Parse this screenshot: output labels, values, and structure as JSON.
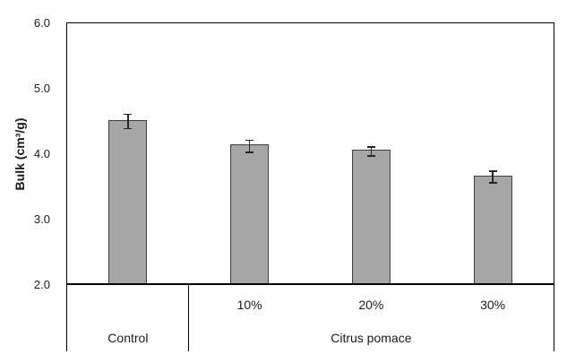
{
  "chart_data": {
    "type": "bar",
    "title": "",
    "xlabel": "",
    "ylabel": "Bulk (cm³/g)",
    "y_axis": {
      "min": 2.0,
      "max": 6.0,
      "tick_step": 1.0,
      "tick_labels": [
        "6.0",
        "5.0",
        "4.0",
        "3.0",
        "2.0"
      ],
      "grid": false
    },
    "bars": [
      {
        "label": "",
        "group": "Control",
        "value": 4.5,
        "error": 0.12
      },
      {
        "label": "10%",
        "group": "Citrus pomace",
        "value": 4.12,
        "error": 0.1
      },
      {
        "label": "20%",
        "group": "Citrus pomace",
        "value": 4.04,
        "error": 0.08
      },
      {
        "label": "30%",
        "group": "Citrus pomace",
        "value": 3.65,
        "error": 0.1
      }
    ],
    "groups": [
      {
        "label": "Control",
        "start": 0,
        "end": 0
      },
      {
        "label": "Citrus pomace",
        "start": 1,
        "end": 3
      }
    ],
    "legend": null,
    "colors": {
      "bar_fill": "#a6a6a6",
      "bar_border": "#404040",
      "axis": "#000000",
      "error_bar": "#262626",
      "text": "#1a1a1a"
    }
  }
}
